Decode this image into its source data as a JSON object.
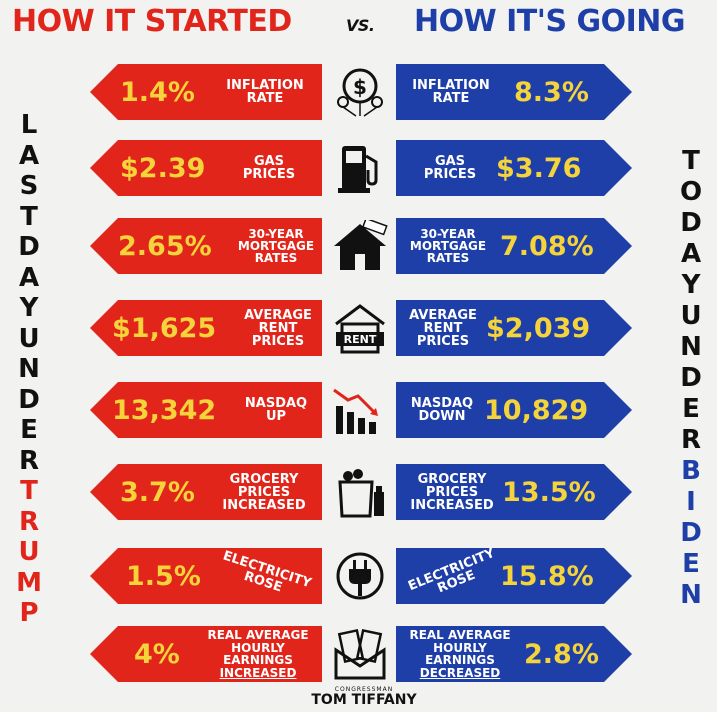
{
  "header": {
    "left": "HOW IT STARTED",
    "vs": "VS.",
    "right": "HOW IT'S GOING"
  },
  "side_left": {
    "line1": "LAST",
    "line2": "DAY",
    "line3": "UNDER",
    "name": "TRUMP"
  },
  "side_right": {
    "line1": "TODAY",
    "line2": "UNDER",
    "name": "BIDEN"
  },
  "rows": [
    {
      "icon": "money-balloon-icon",
      "left_value": "1.4%",
      "left_label": [
        "INFLATION",
        "RATE"
      ],
      "right_value": "8.3%",
      "right_label": [
        "INFLATION",
        "RATE"
      ]
    },
    {
      "icon": "gas-pump-icon",
      "left_value": "$2.39",
      "left_label": [
        "GAS",
        "PRICES"
      ],
      "right_value": "$3.76",
      "right_label": [
        "GAS",
        "PRICES"
      ]
    },
    {
      "icon": "house-for-sale-icon",
      "left_value": "2.65%",
      "left_label": [
        "30-YEAR",
        "MORTGAGE",
        "RATES"
      ],
      "right_value": "7.08%",
      "right_label": [
        "30-YEAR",
        "MORTGAGE",
        "RATES"
      ]
    },
    {
      "icon": "rent-house-icon",
      "icon_text": "RENT",
      "left_value": "$1,625",
      "left_label": [
        "AVERAGE",
        "RENT",
        "PRICES"
      ],
      "right_value": "$2,039",
      "right_label": [
        "AVERAGE",
        "RENT",
        "PRICES"
      ]
    },
    {
      "icon": "declining-chart-icon",
      "left_value": "13,342",
      "left_label": [
        "NASDAQ",
        "UP"
      ],
      "right_value": "10,829",
      "right_label": [
        "NASDAQ",
        "DOWN"
      ]
    },
    {
      "icon": "grocery-bag-icon",
      "left_value": "3.7%",
      "left_label": [
        "GROCERY",
        "PRICES",
        "INCREASED"
      ],
      "right_value": "13.5%",
      "right_label": [
        "GROCERY",
        "PRICES",
        "INCREASED"
      ]
    },
    {
      "icon": "electric-plug-icon",
      "left_value": "1.5%",
      "left_label": [
        "ELECTRICITY",
        "ROSE"
      ],
      "right_value": "15.8%",
      "right_label": [
        "ELECTRICITY",
        "ROSE"
      ]
    },
    {
      "icon": "envelope-cash-icon",
      "left_value": "4%",
      "left_label": [
        "REAL AVERAGE",
        "HOURLY",
        "EARNINGS",
        "INCREASED"
      ],
      "right_value": "2.8%",
      "right_label": [
        "REAL AVERAGE",
        "HOURLY",
        "EARNINGS",
        "DECREASED"
      ]
    }
  ],
  "footer": {
    "small": "CONGRESSMAN",
    "name": "TOM TIFFANY"
  },
  "colors": {
    "red": "#e1251b",
    "blue": "#1f3fa8",
    "yellow": "#f5d33a"
  }
}
